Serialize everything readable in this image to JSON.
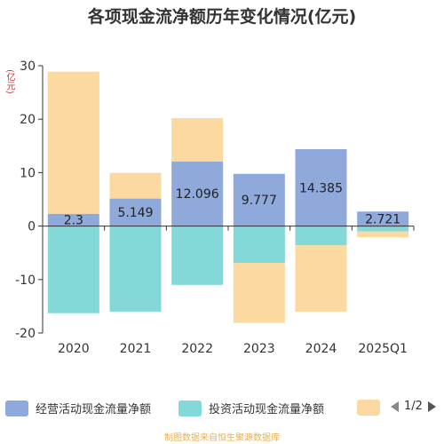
{
  "title": "各项现金流净额历年变化情况(亿元)",
  "unit": "(亿元)",
  "colors": {
    "operating": "#8fa9db",
    "investing": "#85d8d8",
    "financing": "#fcd9a0",
    "axis": "#333333",
    "grid": "#e6e6e6"
  },
  "chart_data": {
    "type": "bar",
    "stacked": true,
    "categories": [
      "2020",
      "2021",
      "2022",
      "2023",
      "2024",
      "2025Q1"
    ],
    "ylim": [
      -20,
      30
    ],
    "yticks": [
      -20,
      -10,
      0,
      10,
      20,
      30
    ],
    "series": [
      {
        "name": "经营活动现金流量净额",
        "values": [
          2.3,
          5.149,
          12.096,
          9.777,
          14.385,
          2.721
        ],
        "data_labels": [
          "2.3",
          "5.149",
          "12.096",
          "9.777",
          "14.385",
          "2.721"
        ]
      },
      {
        "name": "投资活动现金流量净额",
        "values": [
          -16.3,
          -16.0,
          -11.0,
          -6.9,
          -3.6,
          -1.0
        ]
      },
      {
        "name": "",
        "values": [
          26.6,
          4.8,
          8.1,
          -11.2,
          -12.4,
          -1.1
        ]
      }
    ]
  },
  "legend": {
    "items": [
      "经营活动现金流量净额",
      "投资活动现金流量净额"
    ],
    "page": "1/2"
  },
  "source": "制图数据来自恒生聚源数据库"
}
